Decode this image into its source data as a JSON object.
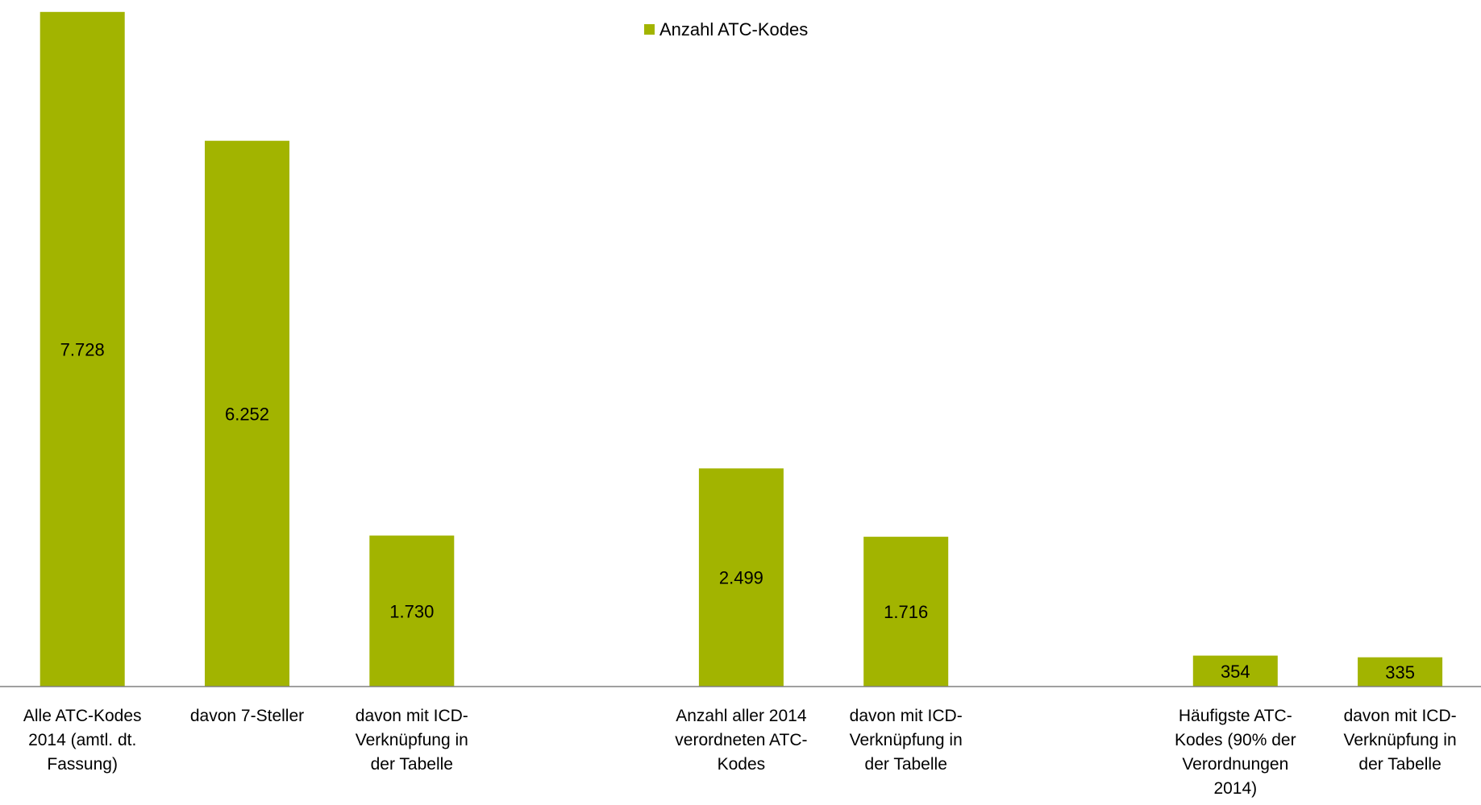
{
  "chart_data": {
    "type": "bar",
    "categories": [
      "Alle ATC-Kodes 2014 (amtl. dt. Fassung)",
      "davon 7-Steller",
      "davon mit ICD-Verknüpfung in der Tabelle",
      "",
      "Anzahl aller 2014 verordneten ATC-Kodes",
      "davon mit ICD-Verknüpfung in der Tabelle",
      "",
      "Häufigste ATC-Kodes (90% der Verordnungen 2014)",
      "davon mit ICD-Verknüpfung in der Tabelle"
    ],
    "category_lines": [
      [
        "Alle ATC-Kodes",
        "2014 (amtl. dt.",
        "Fassung)"
      ],
      [
        "davon 7-Steller"
      ],
      [
        "davon mit ICD-",
        "Verknüpfung in",
        "der Tabelle"
      ],
      [],
      [
        "Anzahl aller 2014",
        "verordneten ATC-",
        "Kodes"
      ],
      [
        "davon mit ICD-",
        "Verknüpfung in",
        "der Tabelle"
      ],
      [],
      [
        "Häufigste ATC-",
        "Kodes (90% der",
        "Verordnungen",
        "2014)"
      ],
      [
        "davon mit ICD-",
        "Verknüpfung in",
        "der Tabelle"
      ]
    ],
    "series": [
      {
        "name": "Anzahl ATC-Kodes",
        "values": [
          7728,
          6252,
          1730,
          null,
          2499,
          1716,
          null,
          354,
          335
        ],
        "value_labels": [
          "7.728",
          "6.252",
          "1.730",
          "",
          "2.499",
          "1.716",
          "",
          "354",
          "335"
        ]
      }
    ],
    "title": "",
    "xlabel": "",
    "ylabel": "",
    "ylim": [
      0,
      7800
    ],
    "grid": false,
    "legend": "top-center",
    "colors": {
      "bar": "#a2b400",
      "axis": "#808080",
      "text": "#000000"
    }
  }
}
